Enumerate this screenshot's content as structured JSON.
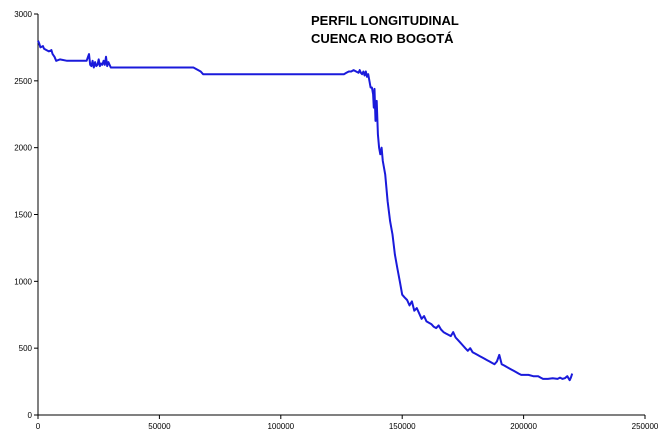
{
  "chart_data": {
    "type": "line",
    "title_lines": [
      "PERFIL LONGITUDINAL",
      "CUENCA RIO BOGOTÁ"
    ],
    "xlabel": "",
    "ylabel": "",
    "xlim": [
      0,
      250000
    ],
    "ylim": [
      0,
      3000
    ],
    "x_ticks": [
      {
        "value": 0,
        "label": "0"
      },
      {
        "value": 50000,
        "label": "50000"
      },
      {
        "value": 100000,
        "label": "100000"
      },
      {
        "value": 150000,
        "label": "150000"
      },
      {
        "value": 200000,
        "label": "200000"
      },
      {
        "value": 250000,
        "label": "250000"
      }
    ],
    "y_ticks": [
      {
        "value": 0,
        "label": "0"
      },
      {
        "value": 500,
        "label": "500"
      },
      {
        "value": 1000,
        "label": "1000"
      },
      {
        "value": 1500,
        "label": "1500"
      },
      {
        "value": 2000,
        "label": "2000"
      },
      {
        "value": 2500,
        "label": "2500"
      },
      {
        "value": 3000,
        "label": "3000"
      }
    ],
    "grid": false,
    "legend": "none",
    "line_color": "#1a1adb",
    "series": [
      {
        "x": [
          0,
          500,
          1000,
          2000,
          2500,
          3500,
          4500,
          5500,
          6000,
          6800,
          7500,
          9000,
          12000,
          16000,
          20000,
          21000,
          21500,
          22000,
          22500,
          23000,
          23500,
          24000,
          24500,
          25000,
          25500,
          26000,
          26500,
          27000,
          27500,
          28000,
          28500,
          29000,
          30000,
          35000,
          45000,
          55000,
          64000,
          66000,
          67000,
          68000,
          80000,
          100000,
          120000,
          126000,
          127000,
          128000,
          129000,
          130000,
          131000,
          132000,
          132500,
          133000,
          133500,
          134000,
          134500,
          135000,
          135500,
          136000,
          136500,
          137000,
          137500,
          138000,
          138300,
          138600,
          139000,
          139500,
          140000,
          140500,
          141000,
          141500,
          142000,
          143000,
          144000,
          145000,
          146000,
          147000,
          148000,
          149000,
          150000,
          151000,
          152000,
          153000,
          154000,
          155000,
          156000,
          157000,
          158000,
          159000,
          160000,
          161000,
          162000,
          163000,
          164000,
          165000,
          166000,
          167000,
          168000,
          169000,
          170000,
          171000,
          172000,
          173000,
          174000,
          175000,
          176000,
          177000,
          178000,
          179000,
          180000,
          181000,
          182000,
          183000,
          184000,
          185000,
          186000,
          187000,
          188000,
          189000,
          190000,
          191000,
          192000,
          193000,
          194000,
          195000,
          196000,
          197000,
          198000,
          199000,
          200000,
          202000,
          204000,
          206000,
          207000,
          208000,
          210000,
          212000,
          214000,
          215000,
          216000,
          217000,
          218000,
          219000,
          219500,
          220000
        ],
        "y": [
          2800,
          2780,
          2750,
          2760,
          2740,
          2730,
          2720,
          2730,
          2700,
          2680,
          2650,
          2660,
          2650,
          2650,
          2650,
          2700,
          2620,
          2610,
          2650,
          2600,
          2640,
          2610,
          2620,
          2660,
          2610,
          2630,
          2620,
          2650,
          2620,
          2680,
          2610,
          2640,
          2600,
          2600,
          2600,
          2600,
          2600,
          2580,
          2570,
          2550,
          2550,
          2550,
          2550,
          2550,
          2560,
          2570,
          2570,
          2580,
          2570,
          2560,
          2580,
          2560,
          2550,
          2570,
          2540,
          2570,
          2530,
          2550,
          2500,
          2450,
          2450,
          2400,
          2300,
          2440,
          2200,
          2350,
          2100,
          2000,
          1950,
          2000,
          1900,
          1800,
          1600,
          1450,
          1350,
          1200,
          1100,
          1000,
          900,
          880,
          860,
          820,
          850,
          780,
          800,
          760,
          720,
          740,
          700,
          690,
          680,
          660,
          650,
          670,
          640,
          620,
          610,
          600,
          590,
          620,
          580,
          560,
          540,
          520,
          500,
          480,
          500,
          470,
          460,
          450,
          440,
          430,
          420,
          410,
          400,
          390,
          380,
          400,
          450,
          380,
          370,
          360,
          350,
          340,
          330,
          320,
          310,
          300,
          300,
          300,
          290,
          290,
          280,
          270,
          270,
          275,
          270,
          280,
          270,
          275,
          290,
          260,
          280,
          310
        ]
      }
    ]
  }
}
